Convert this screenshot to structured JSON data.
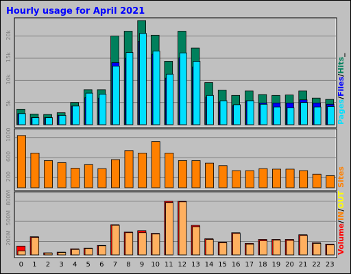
{
  "title": "Hourly usage for April 2021",
  "colors": {
    "background": "#c0c0c0",
    "plot": "#c0c0c0",
    "title": "#0000ff",
    "hits": "#00805c",
    "files": "#0000ff",
    "pages": "#00e0ff",
    "sites": "#ff8000",
    "volume": "#ff0000",
    "kbin": "#ff8000",
    "kbout": "#ffff00",
    "grid": "#808080",
    "label": "#000000",
    "tick": "#808080"
  },
  "chart_data": [
    {
      "type": "bar",
      "panel": "hits-files-pages",
      "categories": [
        "0",
        "1",
        "2",
        "3",
        "4",
        "5",
        "6",
        "7",
        "8",
        "9",
        "10",
        "11",
        "12",
        "13",
        "14",
        "15",
        "16",
        "17",
        "18",
        "19",
        "20",
        "21",
        "22",
        "23"
      ],
      "ylim": [
        0,
        23500
      ],
      "yticks": [
        5000,
        10000,
        15000,
        20000
      ],
      "ytick_labels": [
        "5k",
        "10k",
        "15k",
        "20k"
      ],
      "legend": [
        {
          "text": "Pages",
          "color": "#00e0ff"
        },
        {
          "text": "/",
          "color": "#000000"
        },
        {
          "text": "Files",
          "color": "#0000ff"
        },
        {
          "text": "/",
          "color": "#000000"
        },
        {
          "text": "Hits",
          "color": "#00805c"
        },
        {
          "text": "_",
          "color": "#000000"
        }
      ],
      "series": [
        {
          "name": "Hits",
          "color": "#00805c",
          "values": [
            3500,
            2400,
            2300,
            2700,
            5000,
            7900,
            7900,
            20000,
            21100,
            23500,
            20200,
            14300,
            21100,
            17300,
            9500,
            7800,
            6600,
            7600,
            6800,
            6600,
            6700,
            7600,
            6000,
            5700
          ]
        },
        {
          "name": "Files",
          "color": "#0000ff",
          "values": [
            2500,
            1600,
            1600,
            2100,
            4200,
            6100,
            6000,
            14000,
            15000,
            18800,
            15900,
            10500,
            15100,
            13000,
            6200,
            5100,
            4300,
            5400,
            4900,
            4900,
            4900,
            5600,
            4900,
            4600
          ]
        },
        {
          "name": "Pages",
          "color": "#00e0ff",
          "values": [
            2500,
            1600,
            1600,
            2100,
            4200,
            7100,
            6900,
            13200,
            16300,
            20600,
            16600,
            11400,
            16200,
            14300,
            6600,
            5400,
            4500,
            5400,
            4600,
            4000,
            3800,
            5000,
            4000,
            4100
          ]
        }
      ]
    },
    {
      "type": "bar",
      "panel": "sites",
      "categories": [
        "0",
        "1",
        "2",
        "3",
        "4",
        "5",
        "6",
        "7",
        "8",
        "9",
        "10",
        "11",
        "12",
        "13",
        "14",
        "15",
        "16",
        "17",
        "18",
        "19",
        "20",
        "21",
        "22",
        "23"
      ],
      "ylim": [
        0,
        1120
      ],
      "yticks": [
        200,
        600,
        1000
      ],
      "ytick_labels": [
        "200",
        "600",
        "1000"
      ],
      "legend": [
        {
          "text": "Sites",
          "color": "#ff8000"
        }
      ],
      "series": [
        {
          "name": "Sites",
          "color": "#ff8000",
          "values": [
            1040,
            690,
            540,
            500,
            390,
            460,
            380,
            560,
            740,
            690,
            920,
            690,
            540,
            540,
            490,
            440,
            340,
            340,
            380,
            370,
            370,
            340,
            270,
            240
          ]
        }
      ]
    },
    {
      "type": "bar",
      "panel": "volume",
      "categories": [
        "0",
        "1",
        "2",
        "3",
        "4",
        "5",
        "6",
        "7",
        "8",
        "9",
        "10",
        "11",
        "12",
        "13",
        "14",
        "15",
        "16",
        "17",
        "18",
        "19",
        "20",
        "21",
        "22",
        "23"
      ],
      "ylim": [
        0,
        900
      ],
      "yticks": [
        200,
        500,
        800
      ],
      "ytick_labels": [
        "200M",
        "500M",
        "800M"
      ],
      "legend": [
        {
          "text": "Volume",
          "color": "#ff0000"
        },
        {
          "text": "/",
          "color": "#000000"
        },
        {
          "text": "IN",
          "color": "#ff8000"
        },
        {
          "text": "/",
          "color": "#000000"
        },
        {
          "text": "OUT",
          "color": "#ffff00"
        },
        {
          "text": "Sites",
          "color": "#000000",
          "hidden": true
        }
      ],
      "series": [
        {
          "name": "Volume",
          "color": "#ff0000",
          "values": [
            130,
            270,
            30,
            40,
            90,
            100,
            140,
            450,
            340,
            360,
            320,
            800,
            800,
            440,
            240,
            190,
            330,
            170,
            230,
            230,
            230,
            300,
            180,
            160
          ]
        },
        {
          "name": "KB In",
          "color": "#ff8000",
          "values": [
            60,
            260,
            25,
            35,
            80,
            95,
            135,
            440,
            330,
            330,
            310,
            780,
            790,
            420,
            230,
            180,
            320,
            160,
            210,
            220,
            215,
            290,
            170,
            150
          ]
        }
      ]
    }
  ]
}
